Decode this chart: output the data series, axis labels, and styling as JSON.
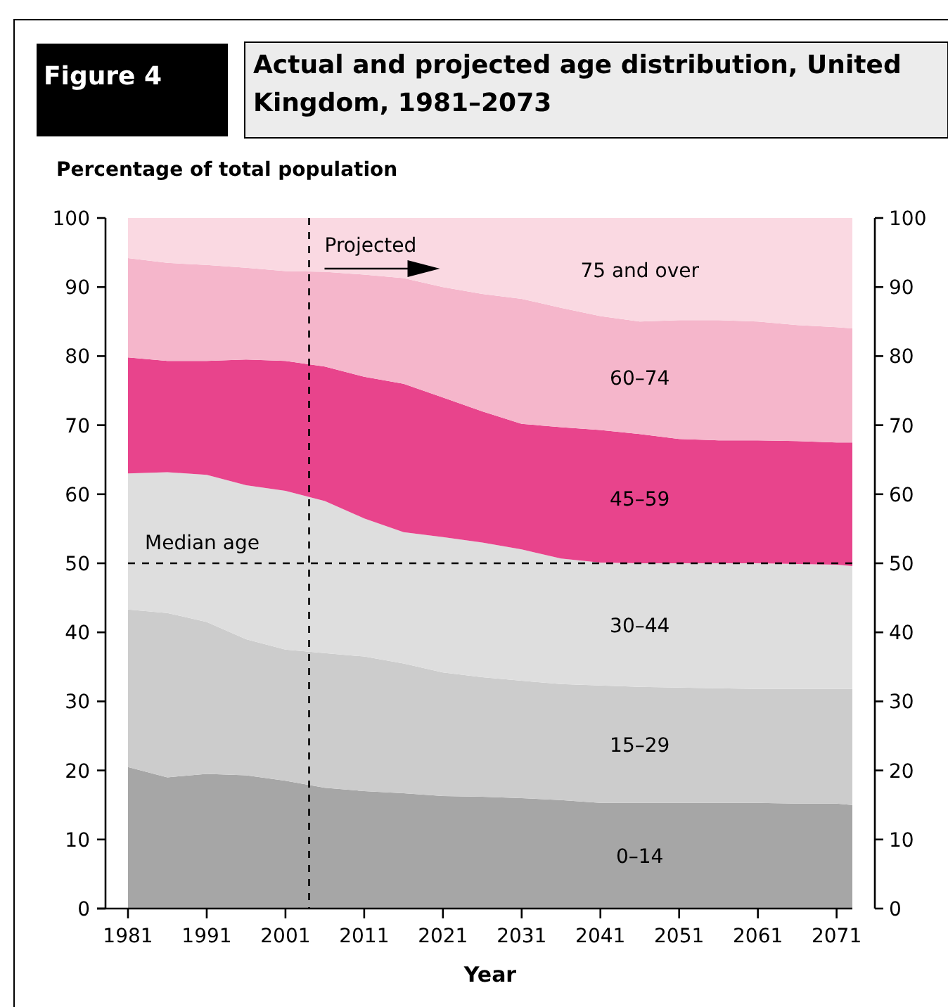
{
  "chart_data": {
    "type": "area",
    "stacked": true,
    "title": "Actual and projected age distribution, United Kingdom, 1981–2073",
    "annotations": [
      "Figure 4"
    ],
    "ylabel": "Percentage of total population",
    "xlabel": "Year",
    "x": [
      1981,
      1986,
      1991,
      1996,
      2001,
      2006,
      2011,
      2016,
      2021,
      2026,
      2031,
      2036,
      2041,
      2046,
      2051,
      2056,
      2061,
      2066,
      2071,
      2073
    ],
    "series": [
      {
        "name": "0–14",
        "color": "#a6a6a6",
        "values": [
          20.5,
          19,
          19.5,
          19.3,
          18.5,
          17.5,
          17,
          16.7,
          16.3,
          16.2,
          16,
          15.7,
          15.3,
          15.3,
          15.3,
          15.3,
          15.3,
          15.2,
          15.2,
          15
        ]
      },
      {
        "name": "15–29",
        "color": "#cccccc",
        "values": [
          22.8,
          23.8,
          22,
          19.7,
          19,
          19.5,
          19.5,
          18.8,
          17.9,
          17.3,
          17,
          16.8,
          17,
          16.8,
          16.7,
          16.6,
          16.5,
          16.6,
          16.6,
          16.8
        ]
      },
      {
        "name": "30–44",
        "color": "#dedede",
        "values": [
          19.7,
          20.4,
          21.3,
          22.3,
          23,
          22,
          20,
          19,
          19.6,
          19.5,
          19,
          18.2,
          17.8,
          17.9,
          18,
          18.1,
          18.2,
          18.1,
          18,
          17.8
        ]
      },
      {
        "name": "45–59",
        "color": "#e8448c",
        "values": [
          16.8,
          16.1,
          16.5,
          18.2,
          18.8,
          19.5,
          20.5,
          21.5,
          20.2,
          19,
          18.2,
          19,
          19.2,
          18.7,
          18,
          17.8,
          17.8,
          17.8,
          17.7,
          17.9
        ]
      },
      {
        "name": "60–74",
        "color": "#f5b6cb",
        "values": [
          14.4,
          14.2,
          13.9,
          13.3,
          13,
          13.7,
          14.8,
          15.3,
          16,
          17,
          18.1,
          17.3,
          16.5,
          16.3,
          17.2,
          17.4,
          17.2,
          16.8,
          16.7,
          16.5
        ]
      },
      {
        "name": "75 and over",
        "color": "#fad9e2",
        "values": [
          5.8,
          6.5,
          6.8,
          7.2,
          7.7,
          7.8,
          8.2,
          8.7,
          10,
          11,
          11.7,
          13,
          14.2,
          15,
          14.8,
          14.8,
          15,
          15.5,
          15.8,
          16
        ]
      }
    ],
    "xlim": [
      1981,
      2073
    ],
    "xticks": [
      1981,
      1991,
      2001,
      2011,
      2021,
      2031,
      2041,
      2051,
      2061,
      2071
    ],
    "ylim": [
      0,
      100
    ],
    "yticks": [
      0,
      10,
      20,
      30,
      40,
      50,
      60,
      70,
      80,
      90,
      100
    ],
    "y2lim": [
      0,
      100
    ],
    "y2ticks": [
      0,
      10,
      20,
      30,
      40,
      50,
      60,
      70,
      80,
      90,
      100
    ],
    "ref_lines": [
      {
        "axis": "x",
        "value": 2004,
        "label": "Projected",
        "line_style": "dashed"
      },
      {
        "axis": "y",
        "value": 50,
        "label": "Median age",
        "line_style": "dashed"
      }
    ],
    "legend": false,
    "grid": false
  }
}
